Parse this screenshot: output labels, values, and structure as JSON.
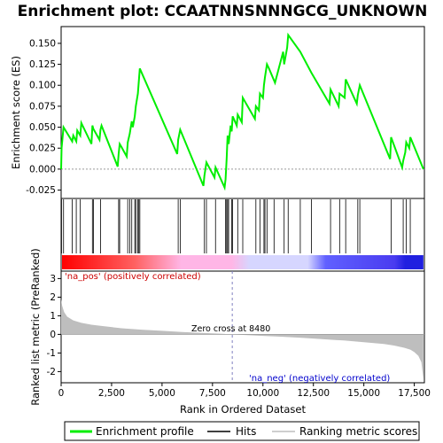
{
  "chart_data": [
    {
      "type": "line",
      "panel": "enrichment-profile",
      "title": "Enrichment plot: CCAATNNSNNNGCG_UNKNOWN",
      "ylabel": "Enrichment score (ES)",
      "xlim": [
        0,
        18000
      ],
      "ylim": [
        -0.035,
        0.17
      ],
      "yticks": [
        -0.025,
        0.0,
        0.025,
        0.05,
        0.075,
        0.1,
        0.125,
        0.15
      ],
      "ytick_labels": [
        "-0.025",
        "0.000",
        "0.025",
        "0.050",
        "0.075",
        "0.100",
        "0.125",
        "0.150"
      ],
      "series": [
        {
          "name": "Enrichment profile",
          "color": "#00ee00",
          "x": [
            0,
            20,
            120,
            550,
            600,
            750,
            800,
            950,
            1000,
            1500,
            1550,
            1600,
            1900,
            1950,
            2000,
            2800,
            2850,
            2900,
            3000,
            3250,
            3300,
            3400,
            3500,
            3550,
            3650,
            3700,
            3800,
            3850,
            3900,
            5750,
            5800,
            5900,
            7050,
            7100,
            7200,
            7600,
            7650,
            8100,
            8150,
            8200,
            8250,
            8300,
            8400,
            8450,
            8500,
            8700,
            8750,
            8950,
            9000,
            9600,
            9650,
            9800,
            9850,
            10000,
            10050,
            10100,
            10200,
            10300,
            10600,
            11000,
            11050,
            11200,
            11250,
            11850,
            12400,
            13300,
            13350,
            13750,
            13800,
            14050,
            14100,
            14650,
            14700,
            14800,
            16300,
            16350,
            16900,
            16950,
            17050,
            17100,
            17250,
            17300,
            17950
          ],
          "y": [
            0.0,
            0.025,
            0.05,
            0.033,
            0.04,
            0.033,
            0.046,
            0.04,
            0.055,
            0.03,
            0.052,
            0.048,
            0.035,
            0.047,
            0.052,
            0.003,
            0.018,
            0.03,
            0.026,
            0.015,
            0.032,
            0.042,
            0.057,
            0.05,
            0.063,
            0.075,
            0.09,
            0.105,
            0.12,
            0.018,
            0.035,
            0.047,
            -0.02,
            -0.008,
            0.008,
            -0.01,
            0.002,
            -0.022,
            -0.012,
            0.012,
            0.04,
            0.03,
            0.052,
            0.045,
            0.063,
            0.052,
            0.065,
            0.056,
            0.085,
            0.06,
            0.075,
            0.07,
            0.09,
            0.085,
            0.1,
            0.11,
            0.125,
            0.12,
            0.103,
            0.14,
            0.125,
            0.145,
            0.16,
            0.14,
            0.115,
            0.078,
            0.095,
            0.075,
            0.09,
            0.085,
            0.107,
            0.078,
            0.088,
            0.1,
            0.012,
            0.038,
            0.002,
            0.01,
            0.02,
            0.032,
            0.025,
            0.038,
            0.0
          ]
        }
      ]
    },
    {
      "type": "scatter",
      "panel": "hits",
      "series": [
        {
          "name": "Hits",
          "color": "#000000",
          "x": [
            20,
            120,
            550,
            750,
            950,
            1550,
            1600,
            1950,
            2850,
            2900,
            3300,
            3400,
            3500,
            3650,
            3700,
            3800,
            3850,
            3900,
            5800,
            5900,
            7100,
            7200,
            7650,
            8150,
            8200,
            8250,
            8300,
            8450,
            8500,
            8750,
            9000,
            9650,
            9850,
            10050,
            10100,
            10200,
            10550,
            11050,
            11250,
            11850,
            12400,
            13350,
            13800,
            14100,
            14700,
            14800,
            16350,
            16950,
            17100,
            17300
          ]
        }
      ]
    },
    {
      "type": "heatmap",
      "panel": "rank-color-bar",
      "colors": [
        "#ff0000",
        "#ffb6e6",
        "#d6d6ff",
        "#2020e0"
      ]
    },
    {
      "type": "area",
      "panel": "ranked-metric",
      "ylabel": "Ranked list metric (PreRanked)",
      "xlabel": "Rank in Ordered Dataset",
      "xlim": [
        0,
        18000
      ],
      "ylim": [
        -2.6,
        3.4
      ],
      "xticks": [
        0,
        2500,
        5000,
        7500,
        10000,
        12500,
        15000,
        17500
      ],
      "xtick_labels": [
        "0",
        "2,500",
        "5,000",
        "7,500",
        "10,000",
        "12,500",
        "15,000",
        "17,500"
      ],
      "yticks": [
        -2,
        -1,
        0,
        1,
        2,
        3
      ],
      "ytick_labels": [
        "-2",
        "-1",
        "0",
        "1",
        "2",
        "3"
      ],
      "series": [
        {
          "name": "Ranking metric scores",
          "color": "#bebebe",
          "x": [
            0,
            50,
            150,
            300,
            600,
            1000,
            1500,
            2000,
            3000,
            4000,
            5000,
            6000,
            7000,
            8000,
            8480,
            9000,
            10000,
            11000,
            12000,
            13000,
            14000,
            15000,
            16000,
            16500,
            17000,
            17300,
            17500,
            17700,
            17850,
            17950
          ],
          "y": [
            1.9,
            1.55,
            1.2,
            0.95,
            0.75,
            0.62,
            0.52,
            0.45,
            0.33,
            0.25,
            0.19,
            0.13,
            0.08,
            0.03,
            0.0,
            -0.03,
            -0.08,
            -0.13,
            -0.19,
            -0.26,
            -0.33,
            -0.42,
            -0.52,
            -0.6,
            -0.72,
            -0.82,
            -0.95,
            -1.15,
            -1.5,
            -2.4
          ]
        }
      ]
    }
  ],
  "labels": {
    "zero_cross": "Zero cross at 8480",
    "na_pos": "'na_pos' (positively correlated)",
    "na_neg": "'na_neg' (negatively correlated)"
  },
  "legend": {
    "items": [
      "Enrichment profile",
      "Hits",
      "Ranking metric scores"
    ]
  },
  "colors": {
    "profile": "#00ee00",
    "hits": "#000000",
    "metric": "#bebebe",
    "zero_line": "#999999",
    "positive_text": "#cc0000",
    "negative_text": "#0000cc"
  }
}
